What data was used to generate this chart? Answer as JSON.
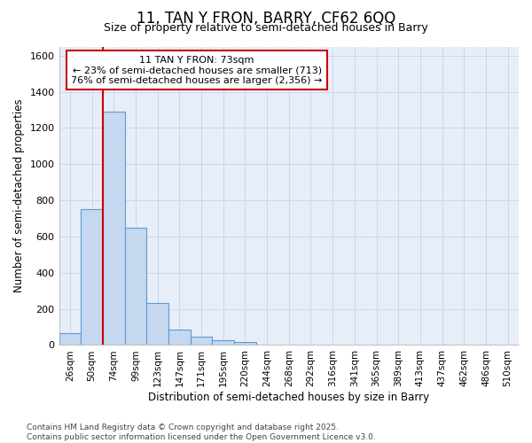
{
  "title_line1": "11, TAN Y FRON, BARRY, CF62 6QQ",
  "title_line2": "Size of property relative to semi-detached houses in Barry",
  "xlabel": "Distribution of semi-detached houses by size in Barry",
  "ylabel": "Number of semi-detached properties",
  "categories": [
    "26sqm",
    "50sqm",
    "74sqm",
    "99sqm",
    "123sqm",
    "147sqm",
    "171sqm",
    "195sqm",
    "220sqm",
    "244sqm",
    "268sqm",
    "292sqm",
    "316sqm",
    "341sqm",
    "365sqm",
    "389sqm",
    "413sqm",
    "437sqm",
    "462sqm",
    "486sqm",
    "510sqm"
  ],
  "values": [
    65,
    750,
    1290,
    650,
    230,
    85,
    45,
    25,
    15,
    0,
    0,
    0,
    0,
    0,
    0,
    0,
    0,
    0,
    0,
    0,
    0
  ],
  "bar_color": "#c5d8f0",
  "bar_edge_color": "#5b9bd5",
  "bar_edge_width": 0.8,
  "vline_x": 2.0,
  "vline_color": "#cc0000",
  "annotation_text": "11 TAN Y FRON: 73sqm\n← 23% of semi-detached houses are smaller (713)\n76% of semi-detached houses are larger (2,356) →",
  "annotation_box_color": "#cc0000",
  "annotation_bg": "white",
  "ylim": [
    0,
    1650
  ],
  "yticks": [
    0,
    200,
    400,
    600,
    800,
    1000,
    1200,
    1400,
    1600
  ],
  "footer": "Contains HM Land Registry data © Crown copyright and database right 2025.\nContains public sector information licensed under the Open Government Licence v3.0.",
  "grid_color": "#c8d8ed",
  "bg_color": "#ffffff",
  "plot_bg_color": "#e8eef8"
}
